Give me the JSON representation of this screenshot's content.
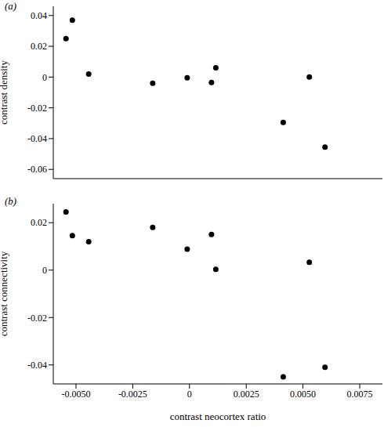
{
  "chart_data": [
    {
      "type": "scatter",
      "title": "(a)",
      "y_label": "contrast density",
      "tick_labels": "y",
      "x": [
        -0.00544,
        -0.00516,
        -0.00444,
        -0.00162,
        -0.0001,
        0.00097,
        0.00116,
        0.00413,
        0.00528,
        0.00597
      ],
      "values": [
        0.025,
        0.037,
        0.002,
        -0.004,
        -0.0005,
        -0.0035,
        0.006,
        -0.0295,
        0,
        -0.0455
      ],
      "color": "#000000",
      "marker": "circle",
      "xlim": [
        -0.006,
        0.0085
      ],
      "xticks": [
        {
          "value": -0.005,
          "label": "-0.0050"
        },
        -0.0025,
        0,
        0.0025,
        {
          "value": 0.005,
          "label": "0.0050"
        },
        0.0075
      ],
      "ylim": [
        -0.066,
        0.046
      ],
      "yticks": [
        0.04,
        0.02,
        0,
        -0.02,
        -0.04,
        -0.06
      ],
      "grid": false
    },
    {
      "type": "scatter",
      "title": "(b)",
      "x_label": "contrast neocortex ratio",
      "y_label": "contrast connectivity",
      "x": [
        -0.00544,
        -0.00516,
        -0.00444,
        -0.00162,
        -0.0001,
        0.00097,
        0.00116,
        0.00413,
        0.00528,
        0.00597
      ],
      "values": [
        0.0245,
        0.0145,
        0.012,
        0.018,
        0.0088,
        0.015,
        0.0003,
        -0.045,
        0.0033,
        -0.041
      ],
      "color": "#000000",
      "marker": "circle",
      "xlim": [
        -0.006,
        0.0085
      ],
      "xticks": [
        {
          "value": -0.005,
          "label": "-0.0050"
        },
        -0.0025,
        0,
        0.0025,
        {
          "value": 0.005,
          "label": "0.0050"
        },
        0.0075
      ],
      "ylim": [
        -0.048,
        0.028
      ],
      "yticks": [
        0.02,
        0,
        -0.02,
        -0.04
      ],
      "grid": false
    }
  ]
}
